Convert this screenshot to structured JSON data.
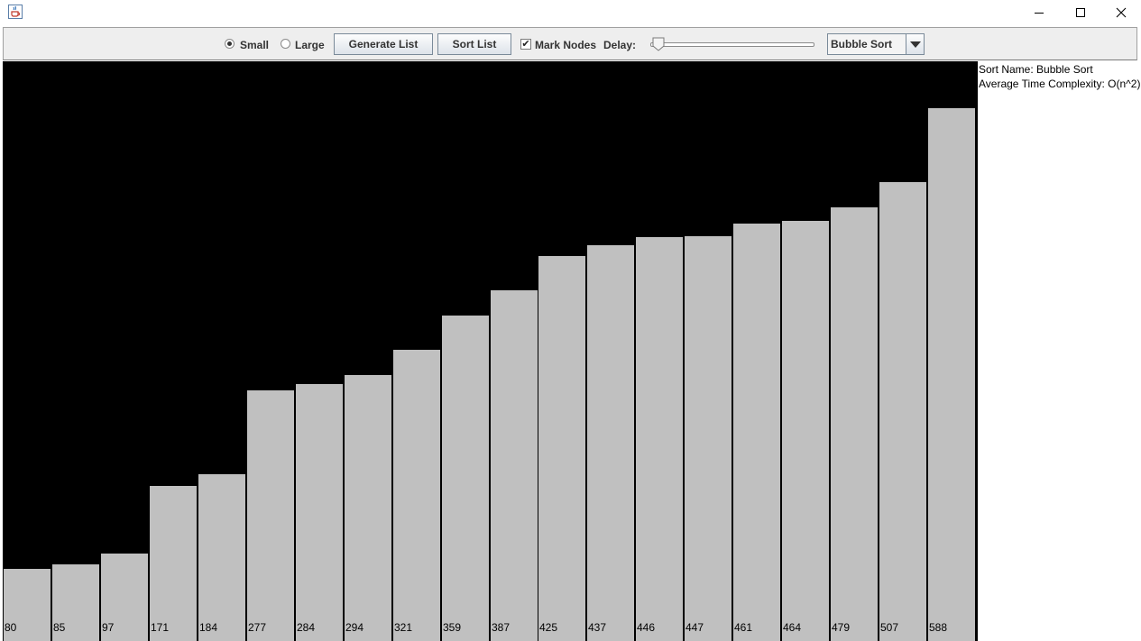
{
  "window": {
    "icon": "java-cup-icon",
    "controls": [
      "minimize-icon",
      "maximize-icon",
      "close-icon"
    ]
  },
  "toolbar": {
    "size_small": "Small",
    "size_large": "Large",
    "selected_size": "Small",
    "generate_label": "Generate List",
    "sort_label": "Sort List",
    "mark_nodes_label": "Mark Nodes",
    "mark_nodes_checked": true,
    "delay_label": "Delay:",
    "delay_level": 0.0,
    "algorithm": "Bubble Sort"
  },
  "info": {
    "sort_name": "Sort Name: Bubble Sort",
    "complexity": "Average Time Complexity: O(n^2)"
  },
  "chart_data": {
    "type": "bar",
    "values": [
      80,
      85,
      97,
      171,
      184,
      277,
      284,
      294,
      321,
      359,
      387,
      425,
      437,
      446,
      447,
      461,
      464,
      479,
      507,
      588
    ],
    "bar_color": "#c0c0c0",
    "background": "#000000",
    "ylim": [
      0,
      640
    ]
  }
}
